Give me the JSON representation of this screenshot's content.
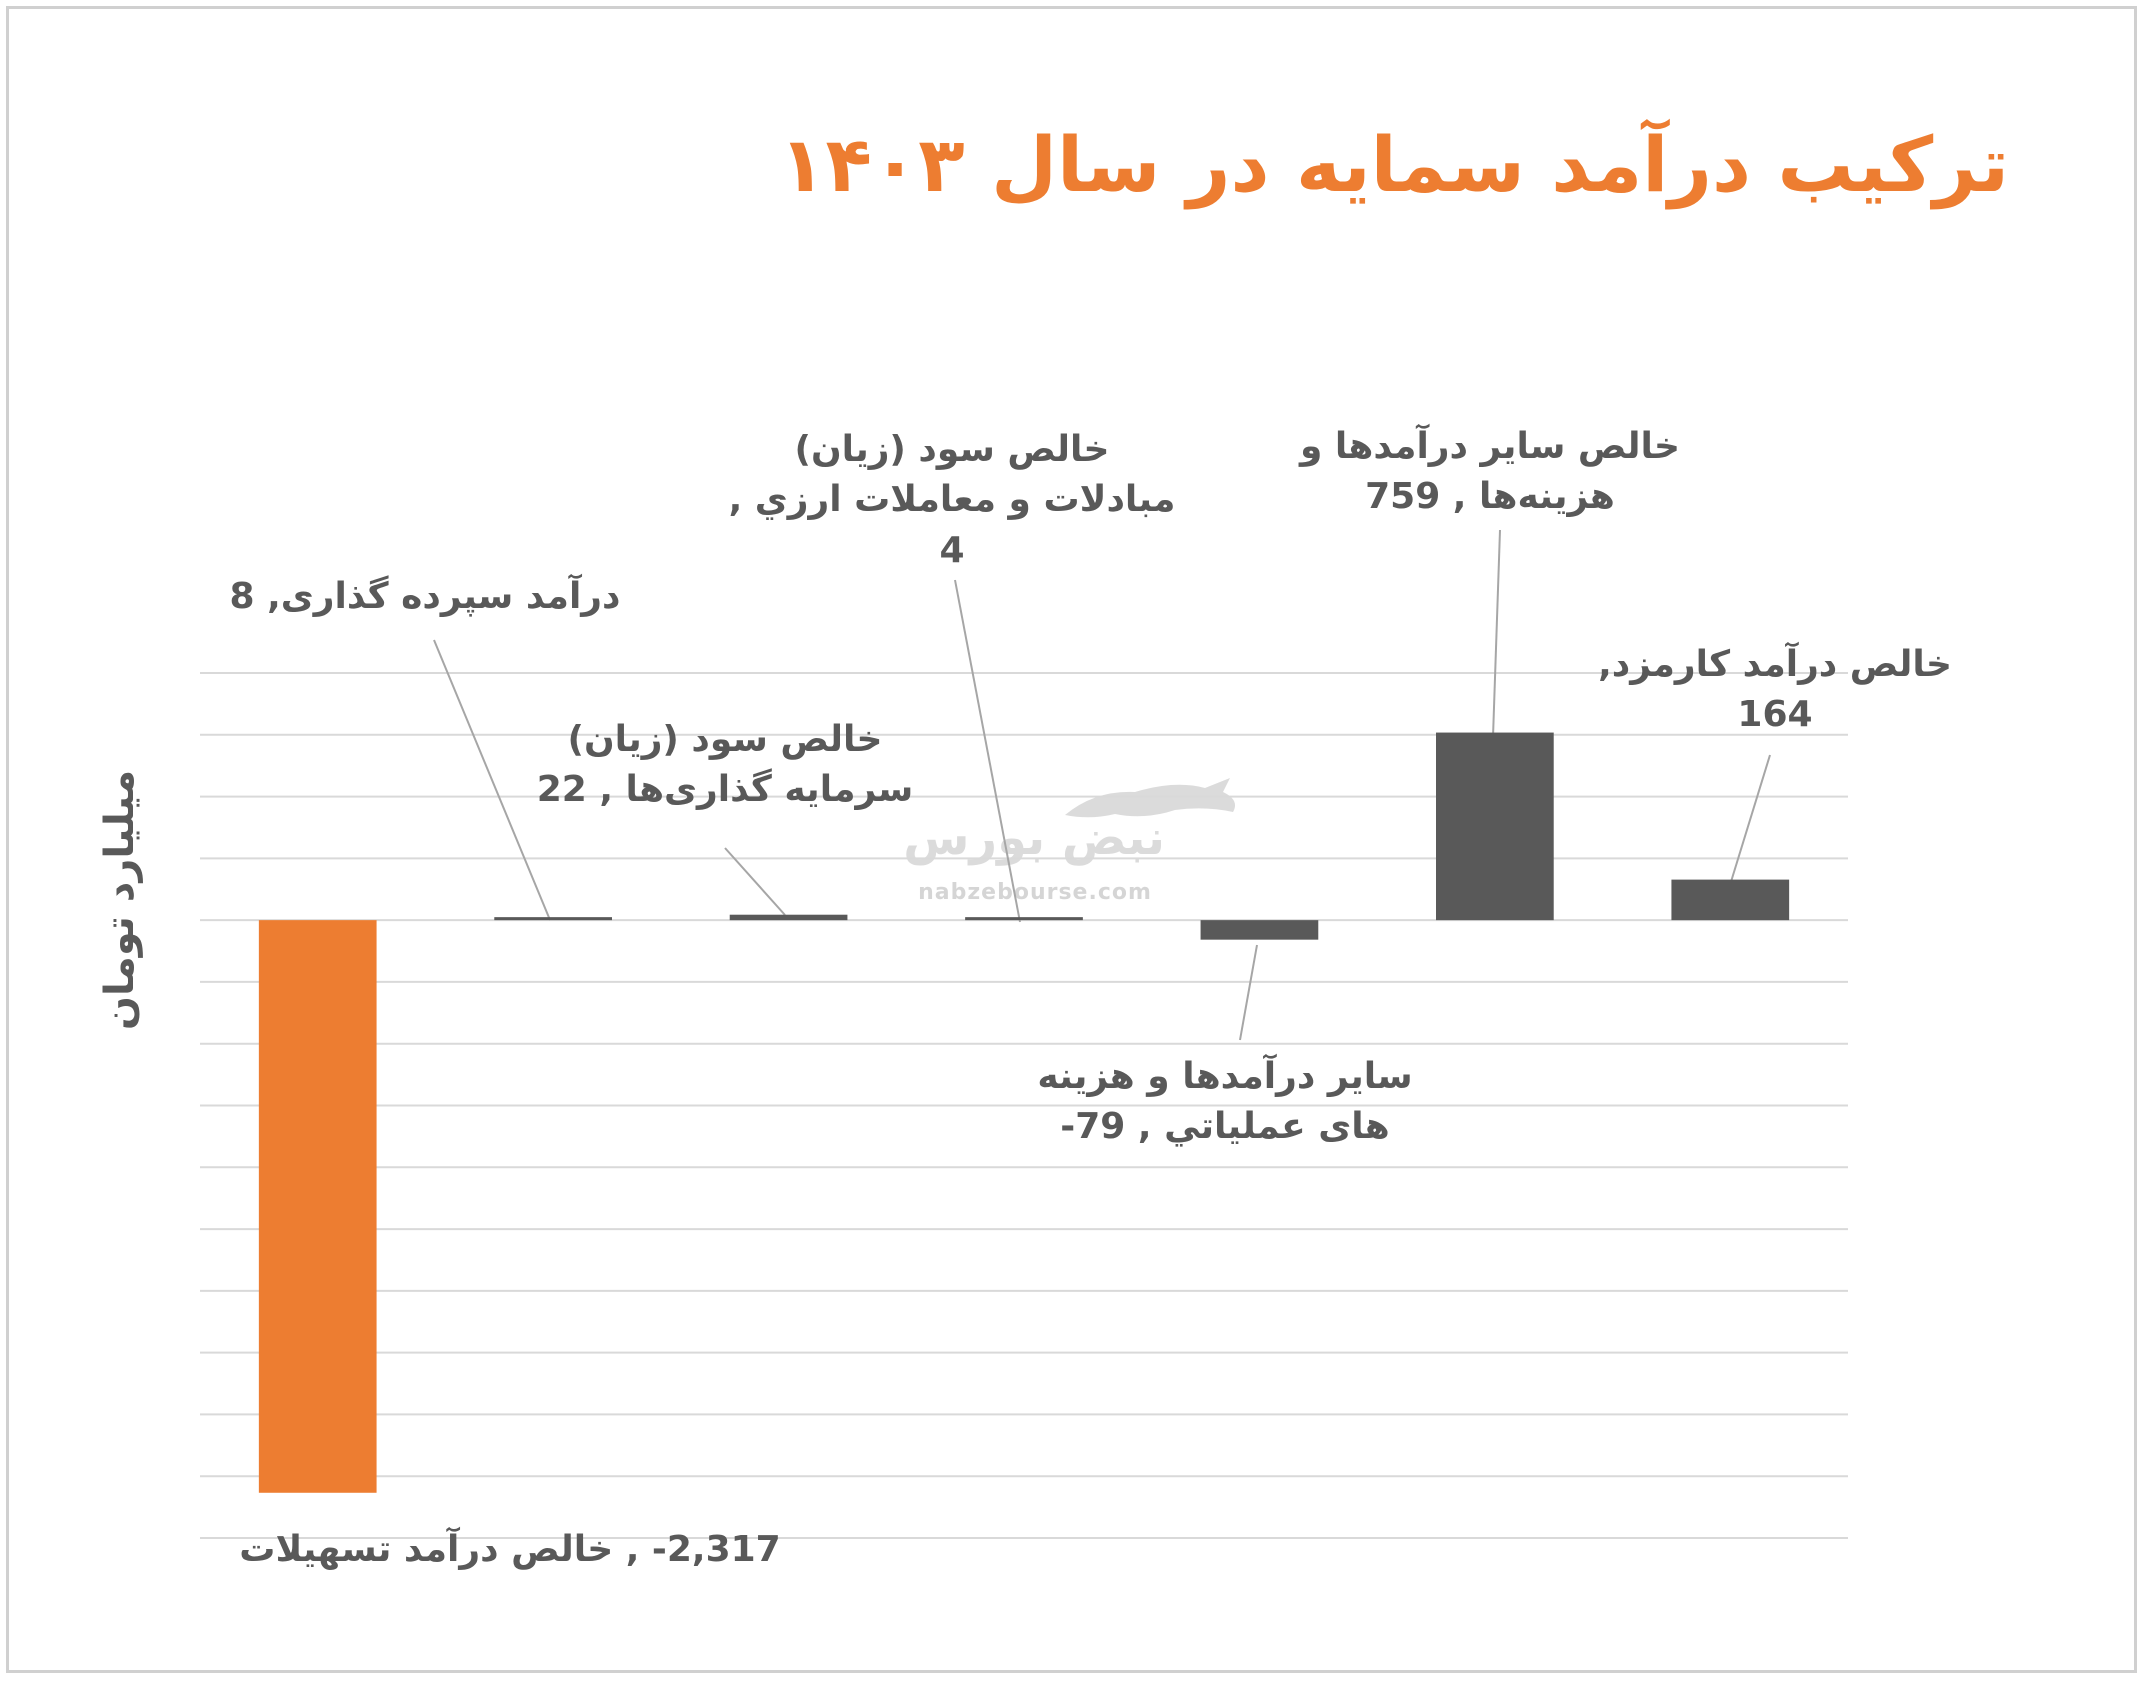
{
  "chart_data": {
    "type": "bar",
    "title": "ترکیب درآمد  سمایه در سال ۱۴۰۳",
    "ylabel": "میلیارد تومان",
    "categories": [
      "خالص درآمد تسهیلات",
      "درآمد سپرده گذاری",
      "خالص سود (زیان) سرمایه گذاری‌ها",
      "خالص سود (زیان) مبادلات و معاملات ارزي",
      "سایر درآمدها و هزینه های عملیاتي",
      "خالص سایر درآمدها و هزینه‌ها",
      "خالص  درآمد کارمزد"
    ],
    "values": [
      -2317,
      8,
      22,
      4,
      -79,
      759,
      164
    ],
    "value_labels": [
      "2,317-",
      "8",
      "22",
      "4",
      "79-",
      "759",
      "164"
    ],
    "ylim": [
      -2500,
      1000
    ],
    "grid": true,
    "legend": "none",
    "data_labels": [
      {
        "lines": [
          "2,317- , خالص درآمد تسهیلات"
        ]
      },
      {
        "lines": [
          "درآمد سپرده گذاری, 8"
        ]
      },
      {
        "lines": [
          "خالص سود (زیان)",
          "سرمایه گذاری‌ها , 22"
        ]
      },
      {
        "lines": [
          "خالص سود (زیان)",
          "مبادلات و معاملات ارزي ,",
          "4"
        ]
      },
      {
        "lines": [
          "سایر درآمدها و هزینه",
          "های عملیاتي , 79-"
        ]
      },
      {
        "lines": [
          "خالص سایر درآمدها و",
          "هزینه‌ها , 759"
        ]
      },
      {
        "lines": [
          "خالص  درآمد کارمزد,",
          "164"
        ]
      }
    ]
  },
  "colors": {
    "accent": "#ed7d31",
    "bar_default": "#595959",
    "grid": "#d9d9d9",
    "leader": "#a6a6a6",
    "label_text": "#595959"
  },
  "watermark": {
    "brand": "نبض بورس",
    "url": "nabzebourse.com",
    "icon": "bull-icon"
  }
}
